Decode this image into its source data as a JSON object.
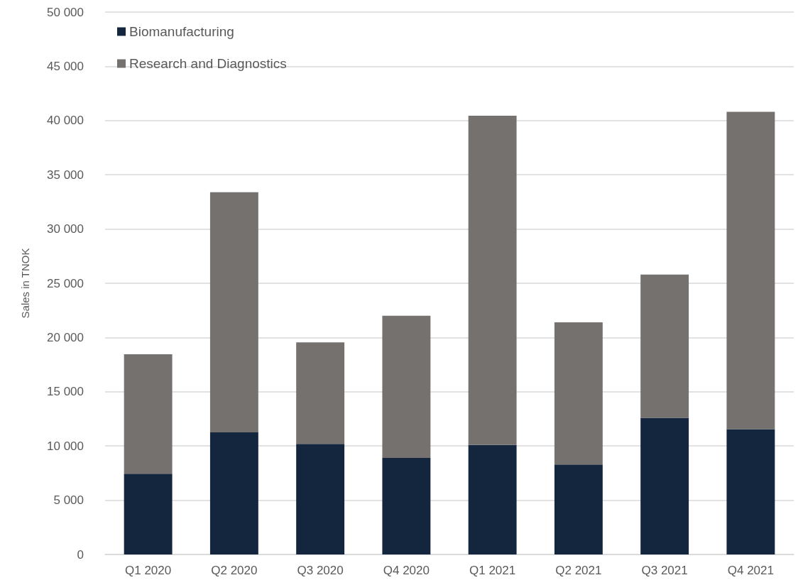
{
  "chart_data": {
    "type": "bar",
    "stacked": true,
    "ylabel": "Sales in TNOK",
    "categories": [
      "Q1 2020",
      "Q2 2020",
      "Q3 2020",
      "Q4 2020",
      "Q1 2021",
      "Q2 2021",
      "Q3 2021",
      "Q4 2021"
    ],
    "series": [
      {
        "name": "Biomanufacturing",
        "color": "#13263d",
        "values": [
          7450,
          11250,
          10200,
          8900,
          10100,
          8300,
          12600,
          11550
        ]
      },
      {
        "name": "Research and Diagnostics",
        "color": "#75716f",
        "values": [
          11000,
          22150,
          9350,
          13100,
          30350,
          13100,
          13200,
          29250
        ]
      }
    ],
    "ylim": [
      0,
      50000
    ],
    "yticks": [
      0,
      {
        "value": 5000,
        "label": "5 000"
      },
      {
        "value": 10000,
        "label": "10 000"
      },
      {
        "value": 15000,
        "label": "15 000"
      },
      {
        "value": 20000,
        "label": "20 000"
      },
      {
        "value": 25000,
        "label": "25 000"
      },
      {
        "value": 30000,
        "label": "30 000"
      },
      {
        "value": 35000,
        "label": "35 000"
      },
      {
        "value": 40000,
        "label": "40 000"
      },
      {
        "value": 45000,
        "label": "45 000"
      },
      {
        "value": 50000,
        "label": "50 000"
      }
    ],
    "grid": "y",
    "legend": "top left"
  }
}
